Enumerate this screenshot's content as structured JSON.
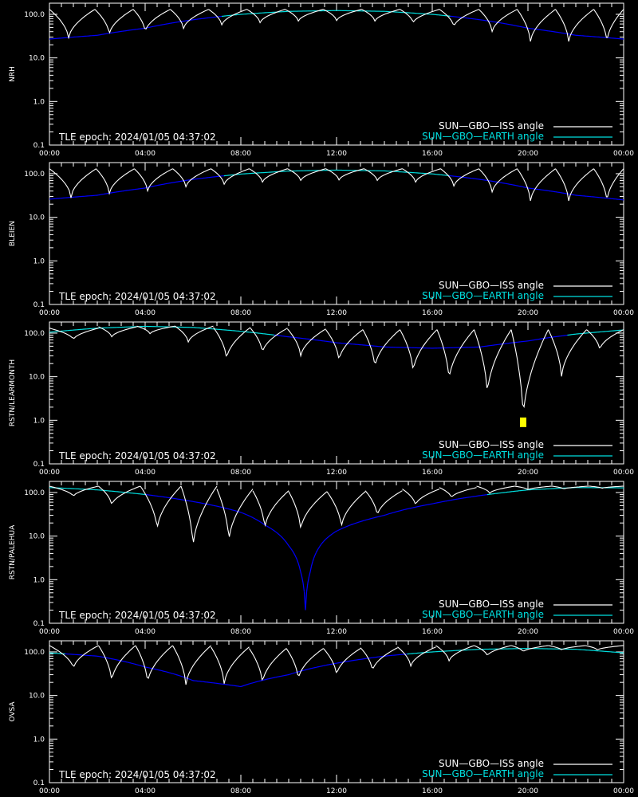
{
  "colors": {
    "background": "#000000",
    "axes": "#ffffff",
    "iss": "#ffffff",
    "iss_shadow": "#909090",
    "earth_high": "#00e0e0",
    "earth_low": "#0000ff",
    "marker": "#ffff00"
  },
  "legend": {
    "iss": "SUN—GBO—ISS angle",
    "earth": "SUN—GBO—EARTH angle"
  },
  "epoch_text": "TLE epoch: 2024/01/05 04:37:02",
  "chart_data": [
    {
      "type": "line",
      "ylabel": "NRH",
      "yscale": "log",
      "ylim": [
        0.1,
        180
      ],
      "yticks": [
        "0.1",
        "1.0",
        "10.0",
        "100.0"
      ],
      "xlim_hours": [
        0,
        24
      ],
      "xticks": [
        "00:00",
        "04:00",
        "08:00",
        "12:00",
        "16:00",
        "20:00",
        "00:00"
      ],
      "earth": {
        "hours": [
          0,
          2,
          4,
          6,
          8,
          10,
          12,
          14,
          16,
          18,
          20,
          22,
          24
        ],
        "values": [
          27,
          33,
          48,
          75,
          100,
          117,
          122,
          117,
          100,
          75,
          48,
          33,
          27
        ]
      },
      "iss": {
        "minima_hours": [
          0.8,
          2.5,
          4.0,
          5.6,
          7.2,
          8.8,
          10.4,
          12.0,
          13.6,
          15.2,
          16.9,
          18.5,
          20.1,
          21.7,
          23.3
        ],
        "minima_values": [
          27,
          33,
          38,
          45,
          55,
          62,
          68,
          70,
          68,
          62,
          50,
          38,
          22,
          22,
          22
        ],
        "peak_values": [
          130,
          130,
          130,
          130,
          130,
          130,
          130,
          130,
          130,
          130,
          130,
          130,
          130,
          130,
          130
        ]
      },
      "markers": []
    },
    {
      "type": "line",
      "ylabel": "BLEIEN",
      "yscale": "log",
      "ylim": [
        0.1,
        180
      ],
      "yticks": [
        "0.1",
        "1.0",
        "10.0",
        "100.0"
      ],
      "xlim_hours": [
        0,
        24
      ],
      "xticks": [
        "00:00",
        "04:00",
        "08:00",
        "12:00",
        "16:00",
        "20:00",
        "00:00"
      ],
      "earth": {
        "hours": [
          0,
          2,
          4,
          6,
          8,
          10,
          12,
          14,
          16,
          18,
          20,
          22,
          24
        ],
        "values": [
          26,
          32,
          47,
          74,
          98,
          115,
          121,
          116,
          99,
          74,
          47,
          32,
          25
        ]
      },
      "iss": {
        "minima_hours": [
          0.9,
          2.5,
          4.1,
          5.7,
          7.3,
          8.9,
          10.5,
          12.1,
          13.7,
          15.3,
          16.9,
          18.5,
          20.1,
          21.7,
          23.3
        ],
        "minima_values": [
          28,
          33,
          38,
          48,
          55,
          62,
          68,
          70,
          68,
          62,
          50,
          36,
          22,
          22,
          22
        ],
        "peak_values": [
          130,
          130,
          130,
          130,
          130,
          130,
          130,
          130,
          130,
          130,
          130,
          130,
          130,
          130,
          130
        ]
      },
      "markers": []
    },
    {
      "type": "line",
      "ylabel": "RSTN/LEARMONTH",
      "yscale": "log",
      "ylim": [
        0.1,
        180
      ],
      "yticks": [
        "0.1",
        "1.0",
        "10.0",
        "100.0"
      ],
      "xlim_hours": [
        0,
        24
      ],
      "xticks": [
        "00:00",
        "04:00",
        "08:00",
        "12:00",
        "16:00",
        "20:00",
        "00:00"
      ],
      "earth": {
        "hours": [
          0,
          2,
          4,
          6,
          8,
          10,
          12,
          14,
          16,
          18,
          20,
          22,
          24
        ],
        "values": [
          105,
          130,
          143,
          135,
          110,
          82,
          60,
          48,
          45,
          48,
          66,
          95,
          118
        ]
      },
      "iss": {
        "minima_hours": [
          1.0,
          2.6,
          4.2,
          5.8,
          7.4,
          8.9,
          10.5,
          12.1,
          13.6,
          15.2,
          16.7,
          18.3,
          19.8,
          21.4,
          23.0
        ],
        "minima_values": [
          70,
          80,
          95,
          60,
          24,
          34,
          28,
          22,
          15,
          12,
          7.5,
          3.5,
          0.95,
          9,
          40
        ],
        "peak_values": [
          130,
          140,
          145,
          145,
          135,
          130,
          125,
          120,
          120,
          120,
          120,
          120,
          120,
          120,
          120
        ]
      },
      "markers": [
        {
          "hour": 19.8,
          "value": 0.9
        }
      ]
    },
    {
      "type": "line",
      "ylabel": "RSTN/PALEHUA",
      "yscale": "log",
      "ylim": [
        0.1,
        180
      ],
      "yticks": [
        "0.1",
        "1.0",
        "10.0",
        "100.0"
      ],
      "xlim_hours": [
        0,
        24
      ],
      "xticks": [
        "00:00",
        "04:00",
        "08:00",
        "12:00",
        "16:00",
        "20:00",
        "00:00"
      ],
      "earth": {
        "hours": [
          0,
          2,
          4,
          6,
          8,
          9,
          10,
          10.5,
          10.7,
          10.9,
          11.5,
          12,
          14,
          16,
          18,
          20,
          22,
          24
        ],
        "values": [
          130,
          115,
          90,
          62,
          35,
          18,
          6,
          1.5,
          0.2,
          1.5,
          8,
          13,
          30,
          55,
          85,
          115,
          130,
          128
        ]
      },
      "iss": {
        "minima_hours": [
          1.0,
          2.6,
          4.5,
          6.0,
          7.5,
          9.0,
          10.5,
          12.2,
          13.7,
          15.3,
          16.8,
          18.4,
          20.0,
          21.5,
          23.1
        ],
        "minima_values": [
          80,
          50,
          13,
          5,
          7,
          14,
          13,
          15,
          28,
          50,
          75,
          95,
          115,
          120,
          125
        ],
        "peak_values": [
          140,
          140,
          140,
          140,
          120,
          110,
          105,
          105,
          110,
          120,
          130,
          140,
          140,
          140,
          140
        ]
      },
      "markers": []
    },
    {
      "type": "line",
      "ylabel": "OVSA",
      "yscale": "log",
      "ylim": [
        0.1,
        180
      ],
      "yticks": [
        "0.1",
        "1.0",
        "10.0",
        "100.0"
      ],
      "xlim_hours": [
        0,
        24
      ],
      "xticks": [
        "00:00",
        "04:00",
        "08:00",
        "12:00",
        "16:00",
        "20:00",
        "00:00"
      ],
      "earth": {
        "hours": [
          0,
          2,
          4,
          6,
          8,
          10,
          12,
          14,
          16,
          18,
          20,
          22,
          24
        ],
        "values": [
          95,
          80,
          45,
          22,
          16,
          30,
          55,
          80,
          100,
          115,
          120,
          115,
          95
        ]
      },
      "iss": {
        "minima_hours": [
          1.0,
          2.6,
          4.1,
          5.7,
          7.3,
          8.9,
          10.4,
          12.0,
          13.5,
          15.1,
          16.7,
          18.3,
          19.8,
          21.4,
          22.9
        ],
        "minima_values": [
          40,
          20,
          18,
          16,
          17,
          18,
          22,
          28,
          35,
          45,
          60,
          80,
          100,
          110,
          110
        ],
        "peak_values": [
          140,
          140,
          140,
          140,
          130,
          120,
          120,
          120,
          125,
          130,
          140,
          140,
          140,
          140,
          140
        ]
      },
      "markers": []
    }
  ]
}
